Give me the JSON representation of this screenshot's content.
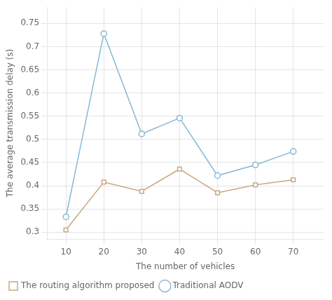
{
  "chart_data": {
    "type": "line",
    "x": [
      10,
      20,
      30,
      40,
      50,
      60,
      70
    ],
    "series": [
      {
        "name": "The routing algorithm proposed",
        "color": "#c8a882",
        "marker": "square",
        "values": [
          0.305,
          0.408,
          0.388,
          0.436,
          0.385,
          0.402,
          0.413
        ]
      },
      {
        "name": "Traditional AODV",
        "color": "#87b8d4",
        "marker": "circle",
        "values": [
          0.333,
          0.728,
          0.512,
          0.546,
          0.422,
          0.445,
          0.474
        ]
      }
    ],
    "x_label": "The number of vehicles",
    "y_label": "The average transmission delay (s)",
    "xlim": [
      5,
      78
    ],
    "xticks": [
      10,
      20,
      30,
      40,
      50,
      60,
      70
    ],
    "ylim": [
      0.285,
      0.785
    ],
    "yticks": [
      0.3,
      0.35,
      0.4,
      0.45,
      0.5,
      0.55,
      0.6,
      0.65,
      0.7,
      0.75
    ],
    "grid": true,
    "legend": "bottom"
  }
}
